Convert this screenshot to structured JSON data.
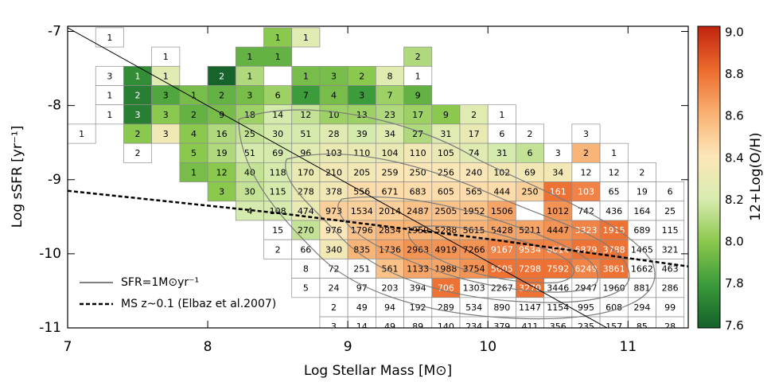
{
  "chart_data": {
    "type": "heatmap2d",
    "x_label": "Log Stellar Mass [M⊙]",
    "y_label": "Log sSFR [yr⁻¹]",
    "colorbar_label": "12+Log(O/H)",
    "xlim": [
      7,
      11.43
    ],
    "ylim": [
      -11,
      -6.93
    ],
    "xticks": [
      7,
      8,
      9,
      10,
      11
    ],
    "yticks": [
      -11,
      -10,
      -9,
      -8,
      -7
    ],
    "clim": [
      7.59,
      9.03
    ],
    "cticks": [
      7.6,
      7.8,
      {
        "value": 8,
        "label": "8.0"
      },
      8.2,
      8.4,
      8.6,
      8.8,
      {
        "value": 9,
        "label": "9.0"
      }
    ],
    "colormap": [
      "#14602a",
      "#3a9a3a",
      "#8cc84e",
      "#d8ecb0",
      "#fde6b8",
      "#f8b070",
      "#ec6a2c",
      "#c0230f"
    ],
    "xbins": [
      7.0,
      7.2,
      7.4,
      7.6,
      7.8,
      8.0,
      8.2,
      8.4,
      8.6,
      8.8,
      9.0,
      9.2,
      9.4,
      9.6,
      9.8,
      10.0,
      10.2,
      10.4,
      10.6,
      10.8,
      11.0,
      11.2,
      11.4
    ],
    "ybins": [
      -6.95,
      -7.21,
      -7.47,
      -7.73,
      -7.99,
      -8.25,
      -8.51,
      -8.77,
      -9.03,
      -9.29,
      -9.55,
      -9.81,
      -10.07,
      -10.33,
      -10.59,
      -10.85,
      -11.11
    ],
    "counts": [
      [
        null,
        1,
        null,
        null,
        null,
        null,
        null,
        1,
        1,
        null,
        null,
        null,
        null,
        null,
        null,
        null,
        null,
        null,
        null,
        null,
        null,
        null
      ],
      [
        null,
        null,
        null,
        1,
        null,
        null,
        1,
        1,
        null,
        null,
        null,
        null,
        2,
        null,
        null,
        null,
        null,
        null,
        null,
        null,
        null,
        null
      ],
      [
        null,
        3,
        1,
        1,
        null,
        2,
        1,
        null,
        1,
        3,
        2,
        8,
        1,
        null,
        null,
        null,
        null,
        null,
        null,
        null,
        null,
        null
      ],
      [
        null,
        1,
        2,
        3,
        1,
        2,
        3,
        6,
        7,
        4,
        3,
        7,
        9,
        null,
        null,
        null,
        null,
        null,
        null,
        null,
        null,
        null
      ],
      [
        null,
        1,
        3,
        3,
        2,
        9,
        18,
        14,
        12,
        10,
        13,
        23,
        17,
        9,
        2,
        1,
        null,
        null,
        null,
        null,
        null,
        null
      ],
      [
        1,
        null,
        2,
        3,
        4,
        16,
        25,
        30,
        51,
        28,
        39,
        34,
        27,
        31,
        17,
        6,
        2,
        null,
        3,
        null,
        null,
        null
      ],
      [
        null,
        null,
        2,
        null,
        5,
        19,
        51,
        69,
        96,
        103,
        110,
        104,
        110,
        105,
        74,
        31,
        6,
        3,
        2,
        1,
        null,
        null
      ],
      [
        null,
        null,
        null,
        null,
        1,
        12,
        40,
        118,
        170,
        210,
        205,
        259,
        250,
        256,
        240,
        102,
        69,
        34,
        12,
        12,
        2,
        null
      ],
      [
        null,
        null,
        null,
        null,
        null,
        3,
        30,
        115,
        278,
        378,
        556,
        671,
        683,
        605,
        565,
        444,
        250,
        161,
        103,
        65,
        19,
        6
      ],
      [
        null,
        null,
        null,
        null,
        null,
        null,
        4,
        108,
        474,
        973,
        1534,
        2014,
        2487,
        2505,
        1952,
        1506,
        null,
        1012,
        742,
        436,
        164,
        25
      ],
      [
        null,
        null,
        null,
        null,
        null,
        null,
        null,
        15,
        270,
        976,
        1796,
        2834,
        1959,
        5288,
        5615,
        5428,
        5211,
        4447,
        3323,
        1915,
        689,
        115
      ],
      [
        null,
        null,
        null,
        null,
        null,
        null,
        null,
        2,
        66,
        340,
        835,
        1736,
        2963,
        4919,
        7266,
        9167,
        9534,
        8014,
        6879,
        3788,
        1465,
        321
      ],
      [
        null,
        null,
        null,
        null,
        null,
        null,
        null,
        null,
        8,
        72,
        251,
        561,
        1133,
        1988,
        3754,
        5605,
        7298,
        7592,
        6249,
        3861,
        1662,
        463
      ],
      [
        null,
        null,
        null,
        null,
        null,
        null,
        null,
        null,
        5,
        24,
        97,
        203,
        394,
        706,
        1303,
        2267,
        3270,
        3446,
        2947,
        1960,
        881,
        286
      ],
      [
        null,
        null,
        null,
        null,
        null,
        null,
        null,
        null,
        null,
        2,
        49,
        94,
        192,
        289,
        534,
        890,
        1147,
        1154,
        995,
        608,
        294,
        99
      ],
      [
        null,
        null,
        null,
        null,
        null,
        null,
        null,
        null,
        null,
        3,
        14,
        49,
        89,
        140,
        234,
        379,
        411,
        356,
        235,
        157,
        85,
        28
      ]
    ],
    "metallicity": [
      [
        null,
        null,
        null,
        null,
        null,
        null,
        null,
        8.0,
        8.25,
        null,
        null,
        null,
        null,
        null,
        null,
        null,
        null,
        null,
        null,
        null,
        null,
        null
      ],
      [
        null,
        null,
        null,
        null,
        null,
        null,
        7.9,
        7.9,
        null,
        null,
        null,
        null,
        8.1,
        null,
        null,
        null,
        null,
        null,
        null,
        null,
        null,
        null
      ],
      [
        null,
        null,
        7.75,
        8.25,
        null,
        7.6,
        8.1,
        null,
        7.95,
        7.95,
        8.0,
        8.25,
        null,
        null,
        null,
        null,
        null,
        null,
        null,
        null,
        null,
        null
      ],
      [
        null,
        null,
        7.7,
        7.85,
        7.95,
        7.9,
        7.95,
        8.05,
        7.8,
        7.95,
        7.8,
        8.05,
        7.9,
        null,
        null,
        null,
        null,
        null,
        null,
        null,
        null,
        null
      ],
      [
        null,
        null,
        7.7,
        8.0,
        7.9,
        7.95,
        8.05,
        8.2,
        8.15,
        8.05,
        8.05,
        8.1,
        8.05,
        8.0,
        8.25,
        null,
        null,
        null,
        null,
        null,
        null,
        null
      ],
      [
        null,
        null,
        8.0,
        8.35,
        8.0,
        8.1,
        8.15,
        8.2,
        8.2,
        8.25,
        8.2,
        8.25,
        8.1,
        8.25,
        8.3,
        null,
        null,
        null,
        null,
        null,
        null,
        null
      ],
      [
        null,
        null,
        null,
        null,
        8.0,
        8.1,
        8.2,
        8.2,
        8.25,
        8.3,
        8.3,
        8.3,
        8.35,
        8.3,
        8.25,
        8.2,
        8.15,
        null,
        8.6,
        null,
        null,
        null
      ],
      [
        null,
        null,
        null,
        null,
        7.95,
        8.0,
        8.15,
        8.2,
        8.3,
        8.35,
        8.35,
        8.4,
        8.4,
        8.4,
        8.4,
        8.35,
        8.35,
        8.35,
        null,
        null,
        null,
        null
      ],
      [
        null,
        null,
        null,
        null,
        null,
        8.0,
        8.15,
        8.2,
        8.3,
        8.35,
        8.45,
        8.45,
        8.45,
        8.45,
        8.45,
        8.45,
        8.5,
        8.8,
        8.75,
        null,
        null,
        null
      ],
      [
        null,
        null,
        null,
        null,
        null,
        null,
        8.2,
        8.2,
        8.3,
        8.5,
        8.5,
        8.5,
        8.55,
        8.55,
        8.55,
        8.65,
        null,
        8.7,
        null,
        null,
        null,
        null
      ],
      [
        null,
        null,
        null,
        null,
        null,
        null,
        null,
        null,
        8.15,
        8.4,
        8.55,
        8.6,
        8.6,
        8.6,
        8.6,
        8.65,
        8.65,
        8.7,
        8.75,
        8.8,
        null,
        null
      ],
      [
        null,
        null,
        null,
        null,
        null,
        null,
        null,
        null,
        null,
        8.35,
        8.6,
        8.65,
        8.7,
        8.7,
        8.7,
        8.75,
        8.75,
        8.75,
        8.8,
        8.8,
        null,
        null
      ],
      [
        null,
        null,
        null,
        null,
        null,
        null,
        null,
        null,
        null,
        null,
        null,
        8.55,
        8.65,
        8.65,
        8.7,
        8.8,
        8.8,
        8.8,
        8.75,
        8.8,
        null,
        null
      ],
      [
        null,
        null,
        null,
        null,
        null,
        null,
        null,
        null,
        null,
        null,
        null,
        null,
        null,
        8.8,
        null,
        null,
        8.8,
        null,
        null,
        null,
        null,
        null
      ],
      [
        null,
        null,
        null,
        null,
        null,
        null,
        null,
        null,
        null,
        null,
        null,
        null,
        null,
        null,
        null,
        null,
        null,
        null,
        null,
        null,
        null,
        null
      ],
      [
        null,
        null,
        null,
        null,
        null,
        null,
        null,
        null,
        null,
        null,
        null,
        null,
        null,
        null,
        null,
        null,
        null,
        null,
        null,
        null,
        null,
        null
      ]
    ],
    "lines": [
      {
        "name": "SFR=1M⊙yr⁻¹",
        "style": "solid",
        "x": [
          7,
          10.85
        ],
        "y": [
          -6.95,
          -11
        ]
      },
      {
        "name": "MS z~0.1 (Elbaz et al.2007)",
        "style": "dashed",
        "x": [
          7,
          8.5,
          10,
          11.43
        ],
        "y": [
          -9.15,
          -9.45,
          -9.8,
          -10.17
        ]
      }
    ]
  }
}
